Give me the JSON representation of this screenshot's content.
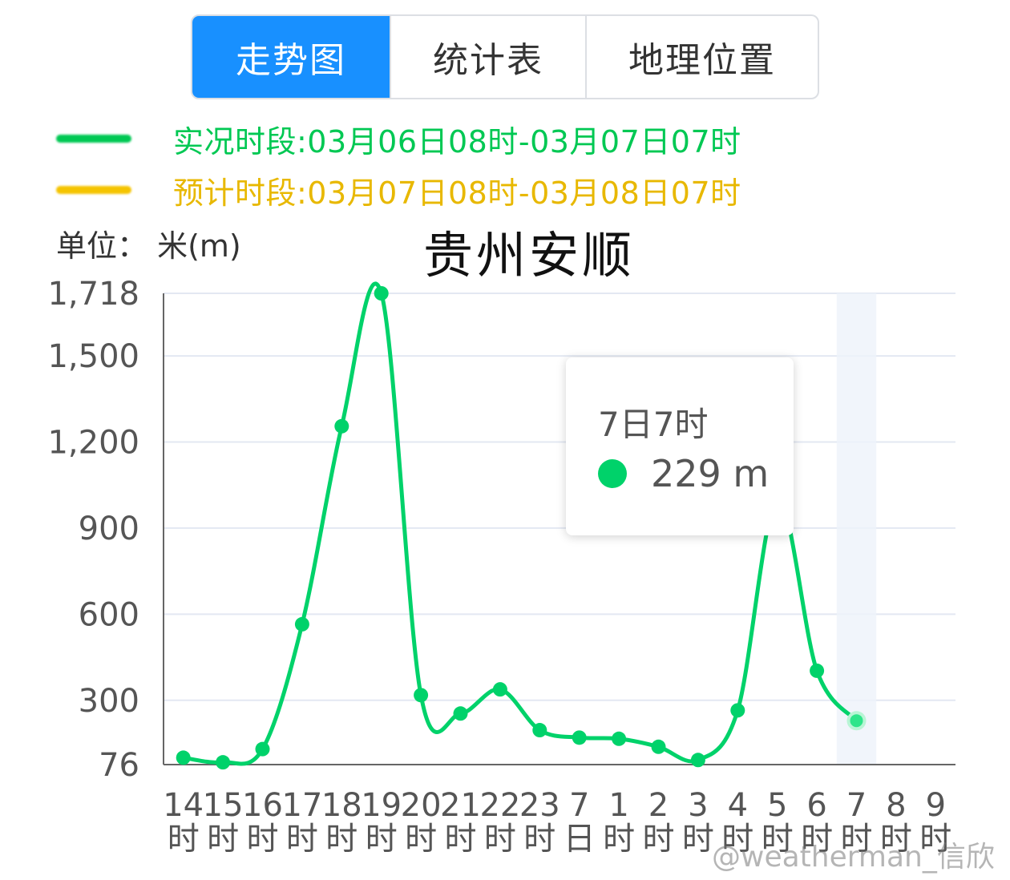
{
  "tabs": [
    {
      "label": "走势图",
      "active": true
    },
    {
      "label": "统计表",
      "active": false
    },
    {
      "label": "地理位置",
      "active": false
    }
  ],
  "legend": [
    {
      "text": "实况时段:03月06日08时-03月07日07时",
      "color": "#00c853"
    },
    {
      "text": "预计时段:03月07日08时-03月08日07时",
      "color": "#f5c400"
    }
  ],
  "unit_label": "单位：  米(m)",
  "tooltip": {
    "title": "7日7时",
    "value": "229 m"
  },
  "watermark": "@weatherman_信欣",
  "chart_data": {
    "type": "line",
    "title": "贵州安顺",
    "ylabel": "单位：米(m)",
    "ylim": [
      76,
      1718
    ],
    "yticks": [
      "76",
      "300",
      "600",
      "900",
      "1,200",
      "1,500",
      "1,718"
    ],
    "ytick_values": [
      76,
      300,
      600,
      900,
      1200,
      1500,
      1718
    ],
    "categories": [
      "14时",
      "15时",
      "16时",
      "17时",
      "18时",
      "19时",
      "20时",
      "21时",
      "22时",
      "23时",
      "7日",
      "1时",
      "2时",
      "3时",
      "4时",
      "5时",
      "6时",
      "7时",
      "8时",
      "9时"
    ],
    "xtick_top": [
      "14",
      "15",
      "16",
      "17",
      "18",
      "19",
      "20",
      "21",
      "22",
      "23",
      "7",
      "1",
      "2",
      "3",
      "4",
      "5",
      "6",
      "7",
      "8",
      "9"
    ],
    "xtick_bottom": [
      "时",
      "时",
      "时",
      "时",
      "时",
      "时",
      "时",
      "时",
      "时",
      "时",
      "日",
      "时",
      "时",
      "时",
      "时",
      "时",
      "时",
      "时",
      "时",
      "时"
    ],
    "series": [
      {
        "values": [
          100,
          84,
          130,
          565,
          1255,
          1718,
          318,
          254,
          338,
          196,
          170,
          166,
          138,
          92,
          265,
          1000,
          403,
          229,
          null,
          null
        ],
        "color": "#00d26a"
      }
    ],
    "highlight_category": "7时",
    "grid": true
  }
}
